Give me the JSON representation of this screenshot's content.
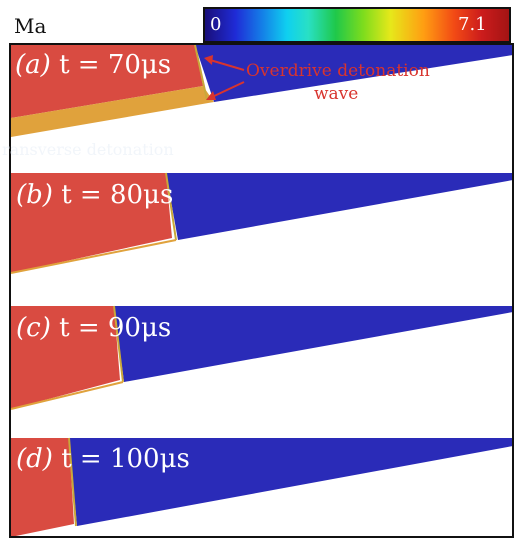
{
  "colorbar": {
    "variable": "Ma",
    "min_label": "0",
    "max_label": "7.1",
    "colors": [
      "#1a0f7a",
      "#1f2bd6",
      "#1577e6",
      "#0fd0f0",
      "#29e0c4",
      "#1fc84a",
      "#7ddc1d",
      "#e6e81a",
      "#ff9d12",
      "#f24a15",
      "#cc1c1c",
      "#a31414"
    ]
  },
  "panels": [
    {
      "id": "a",
      "letter": "(a)",
      "time": "t = 70μs"
    },
    {
      "id": "b",
      "letter": "(b)",
      "time": "t = 80μs"
    },
    {
      "id": "c",
      "letter": "(c)",
      "time": "t = 90μs"
    },
    {
      "id": "d",
      "letter": "(d)",
      "time": "t = 100μs"
    }
  ],
  "annotation": {
    "line1": "Overdrive detonation",
    "line2": "wave"
  },
  "ghost_text": "ransverse detonation",
  "colors": {
    "burned": "#d94b41",
    "unburned": "#2a2bb8",
    "front": "#c9a83a",
    "background": "#ffffff",
    "annotation": "#d8342e"
  }
}
